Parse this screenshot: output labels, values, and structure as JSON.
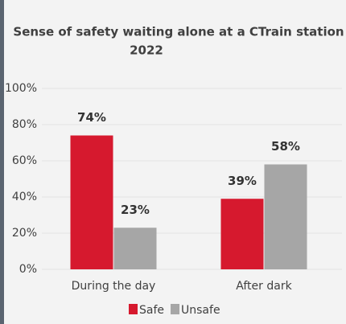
{
  "chart_data": {
    "type": "bar",
    "title": "Sense of safety waiting alone at a CTrain station",
    "subtitle": "2022",
    "categories": [
      "During the day",
      "After dark"
    ],
    "series": [
      {
        "name": "Safe",
        "color": "#d6192e",
        "values": [
          74,
          39
        ],
        "value_labels": [
          "74%",
          "39%"
        ]
      },
      {
        "name": "Unsafe",
        "color": "#a6a6a6",
        "values": [
          23,
          58
        ],
        "value_labels": [
          "23%",
          "58%"
        ]
      }
    ],
    "ylim": [
      0,
      100
    ],
    "yticks": [
      {
        "value": 0,
        "label": "0%"
      },
      {
        "value": 20,
        "label": "20%"
      },
      {
        "value": 40,
        "label": "40%"
      },
      {
        "value": 60,
        "label": "60%"
      },
      {
        "value": 80,
        "label": "80%"
      },
      {
        "value": 100,
        "label": "100%"
      }
    ],
    "grid": true,
    "legend": "bottom"
  }
}
